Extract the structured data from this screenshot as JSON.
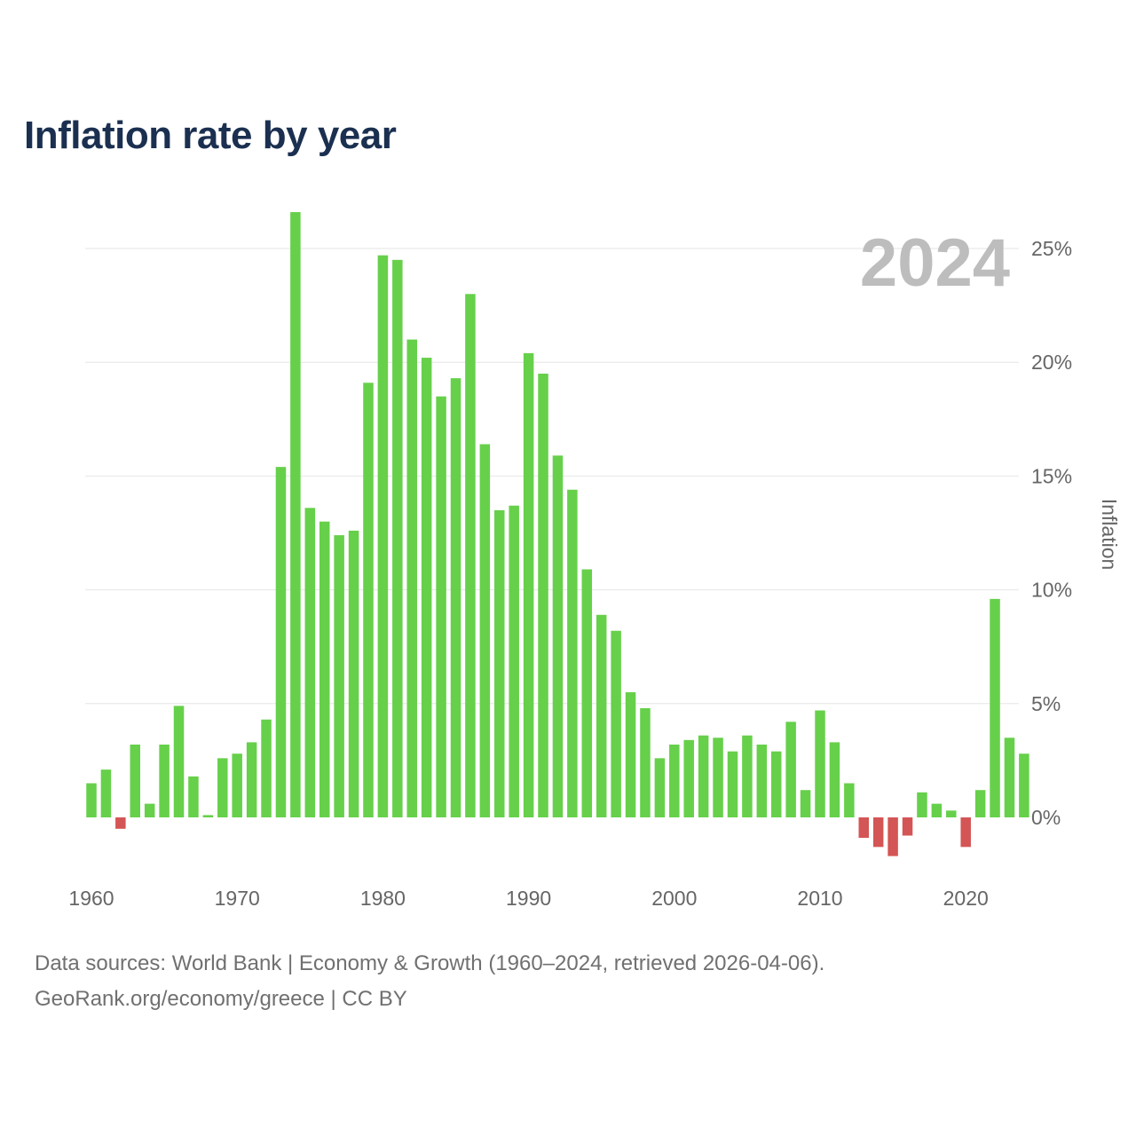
{
  "title": "Inflation rate by year",
  "colors": {
    "positive": "#66d04a",
    "negative": "#d45555",
    "grid": "#e6e6e6",
    "title": "#1b3050"
  },
  "chart_data": {
    "type": "bar",
    "title": "Inflation rate by year",
    "xlabel": "",
    "ylabel": "Inflation",
    "current_year_label": "2024",
    "x": [
      1960,
      1961,
      1962,
      1963,
      1964,
      1965,
      1966,
      1967,
      1968,
      1969,
      1970,
      1971,
      1972,
      1973,
      1974,
      1975,
      1976,
      1977,
      1978,
      1979,
      1980,
      1981,
      1982,
      1983,
      1984,
      1985,
      1986,
      1987,
      1988,
      1989,
      1990,
      1991,
      1992,
      1993,
      1994,
      1995,
      1996,
      1997,
      1998,
      1999,
      2000,
      2001,
      2002,
      2003,
      2004,
      2005,
      2006,
      2007,
      2008,
      2009,
      2010,
      2011,
      2012,
      2013,
      2014,
      2015,
      2016,
      2017,
      2018,
      2019,
      2020,
      2021,
      2022,
      2023,
      2024
    ],
    "values": [
      1.5,
      2.1,
      -0.5,
      3.2,
      0.6,
      3.2,
      4.9,
      1.8,
      0.1,
      2.6,
      2.8,
      3.3,
      4.3,
      15.4,
      26.6,
      13.6,
      13.0,
      12.4,
      12.6,
      19.1,
      24.7,
      24.5,
      21.0,
      20.2,
      18.5,
      19.3,
      23.0,
      16.4,
      13.5,
      13.7,
      20.4,
      19.5,
      15.9,
      14.4,
      10.9,
      8.9,
      8.2,
      5.5,
      4.8,
      2.6,
      3.2,
      3.4,
      3.6,
      3.5,
      2.9,
      3.6,
      3.2,
      2.9,
      4.2,
      1.2,
      4.7,
      3.3,
      1.5,
      -0.9,
      -1.3,
      -1.7,
      -0.8,
      1.1,
      0.6,
      0.3,
      -1.3,
      1.2,
      9.6,
      3.5,
      2.8
    ],
    "xticks": [
      1960,
      1970,
      1980,
      1990,
      2000,
      2010,
      2020
    ],
    "yticks": [
      0,
      5,
      10,
      15,
      20,
      25
    ],
    "ytick_labels": [
      "0%",
      "5%",
      "10%",
      "15%",
      "20%",
      "25%"
    ],
    "ylim": [
      -3,
      27
    ],
    "grid": true,
    "y_axis_side": "right"
  },
  "footer": {
    "line1": "Data sources: World Bank | Economy & Growth (1960–2024, retrieved 2026-04-06).",
    "line2": "GeoRank.org/economy/greece | CC BY"
  }
}
